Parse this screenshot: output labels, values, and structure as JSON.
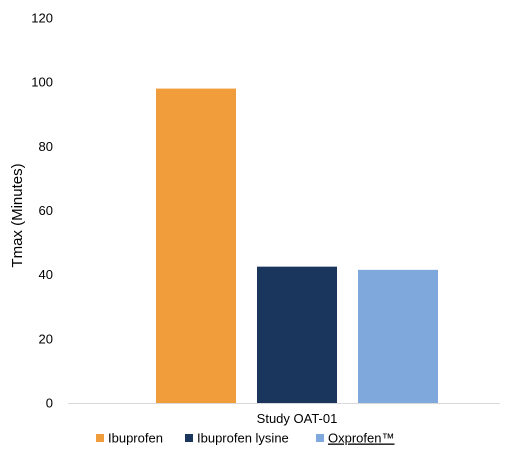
{
  "chart_data": {
    "type": "bar",
    "categories": [
      "Study OAT-01"
    ],
    "series": [
      {
        "name": "Ibuprofen",
        "values": [
          98
        ],
        "color": "#F19D3C"
      },
      {
        "name": "Ibuprofen lysine",
        "values": [
          42.5
        ],
        "color": "#1A365D"
      },
      {
        "name": "Oxprofen™",
        "values": [
          41.5
        ],
        "color": "#7FA9DD"
      }
    ],
    "ylabel": "Tmax (Minutes)",
    "xlabel": "",
    "ylim": [
      0,
      120
    ],
    "yticks": [
      0,
      20,
      40,
      60,
      80,
      100,
      120
    ],
    "grid": false,
    "legend_position": "bottom"
  }
}
